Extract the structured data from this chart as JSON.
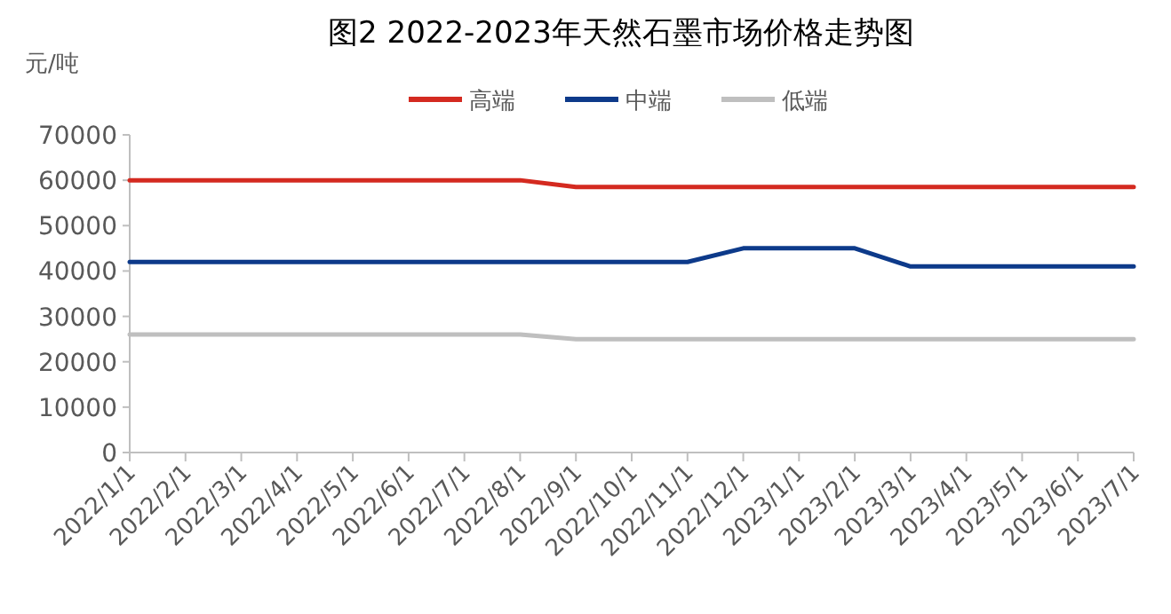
{
  "chart_data": {
    "type": "line",
    "title": "图2 2022-2023年天然石墨市场价格走势图",
    "ylabel": "元/吨",
    "categories": [
      "2022/1/1",
      "2022/2/1",
      "2022/3/1",
      "2022/4/1",
      "2022/5/1",
      "2022/6/1",
      "2022/7/1",
      "2022/8/1",
      "2022/9/1",
      "2022/10/1",
      "2022/11/1",
      "2022/12/1",
      "2023/1/1",
      "2023/2/1",
      "2023/3/1",
      "2023/4/1",
      "2023/5/1",
      "2023/6/1",
      "2023/7/1"
    ],
    "series": [
      {
        "name": "高端",
        "color": "#d42a20",
        "values": [
          60000,
          60000,
          60000,
          60000,
          60000,
          60000,
          60000,
          60000,
          58500,
          58500,
          58500,
          58500,
          58500,
          58500,
          58500,
          58500,
          58500,
          58500,
          58500
        ]
      },
      {
        "name": "中端",
        "color": "#0d3a8a",
        "values": [
          42000,
          42000,
          42000,
          42000,
          42000,
          42000,
          42000,
          42000,
          42000,
          42000,
          42000,
          45000,
          45000,
          45000,
          41000,
          41000,
          41000,
          41000,
          41000
        ]
      },
      {
        "name": "低端",
        "color": "#bfbfbf",
        "values": [
          26000,
          26000,
          26000,
          26000,
          26000,
          26000,
          26000,
          26000,
          25000,
          25000,
          25000,
          25000,
          25000,
          25000,
          25000,
          25000,
          25000,
          25000,
          25000
        ]
      }
    ],
    "ylim": [
      0,
      70000
    ],
    "yticks": [
      0,
      10000,
      20000,
      30000,
      40000,
      50000,
      60000,
      70000
    ],
    "legend": "top",
    "grid": false,
    "marker": "none",
    "line_style": "solid"
  }
}
